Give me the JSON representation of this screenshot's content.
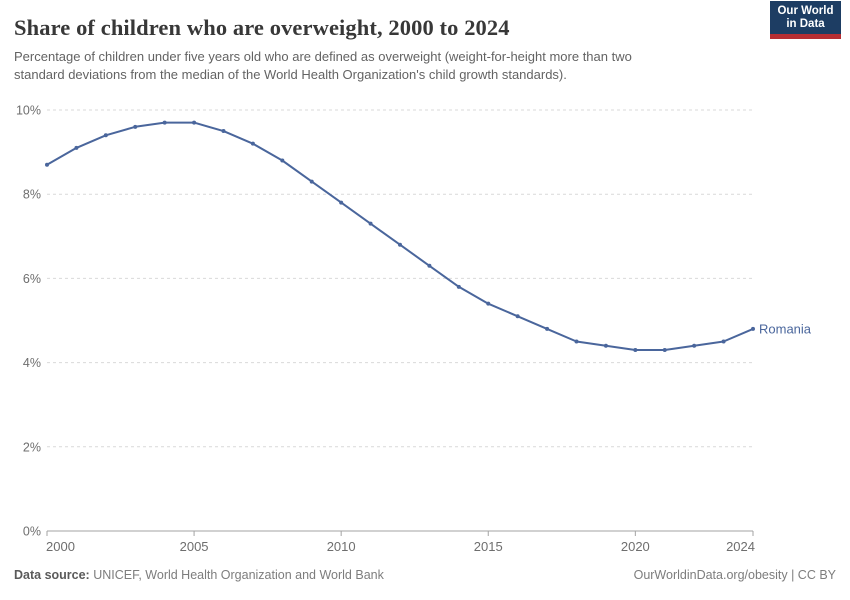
{
  "header": {
    "logo": {
      "line1": "Our World",
      "line2": "in Data",
      "bg_color": "#1d3d63",
      "stripe_color": "#b62e33"
    }
  },
  "chart_data": {
    "type": "line",
    "title": "Share of children who are overweight, 2000 to 2024",
    "subtitle_line1": "Percentage of children under five years old who are defined as overweight (weight-for-height more than two",
    "subtitle_line2": "standard deviations from the median of the World Health Organization's child growth standards).",
    "xlabel": "",
    "ylabel": "",
    "xlim": [
      2000,
      2024
    ],
    "ylim": [
      0,
      10
    ],
    "x_ticks": [
      2000,
      2005,
      2010,
      2015,
      2020,
      2024
    ],
    "y_ticks": [
      0,
      2,
      4,
      6,
      8,
      10
    ],
    "y_tick_suffix": "%",
    "grid": "horizontal-dashed",
    "legend_position": "end-of-line-label",
    "x": [
      2000,
      2001,
      2002,
      2003,
      2004,
      2005,
      2006,
      2007,
      2008,
      2009,
      2010,
      2011,
      2012,
      2013,
      2014,
      2015,
      2016,
      2017,
      2018,
      2019,
      2020,
      2021,
      2022,
      2023,
      2024
    ],
    "series": [
      {
        "name": "Romania",
        "color": "#4a669c",
        "values": [
          8.7,
          9.1,
          9.4,
          9.6,
          9.7,
          9.7,
          9.5,
          9.2,
          8.8,
          8.3,
          7.8,
          7.3,
          6.8,
          6.3,
          5.8,
          5.4,
          5.1,
          4.8,
          4.5,
          4.4,
          4.3,
          4.3,
          4.4,
          4.5,
          4.8
        ]
      }
    ],
    "colors": {
      "grid": "#d9d9d9",
      "axis": "#a3a3a3",
      "tick_text": "#6e6e6e"
    }
  },
  "footer": {
    "datasource_label": "Data source:",
    "datasource_value": " UNICEF, World Health Organization and World Bank",
    "attribution": "OurWorldinData.org/obesity | CC BY"
  }
}
